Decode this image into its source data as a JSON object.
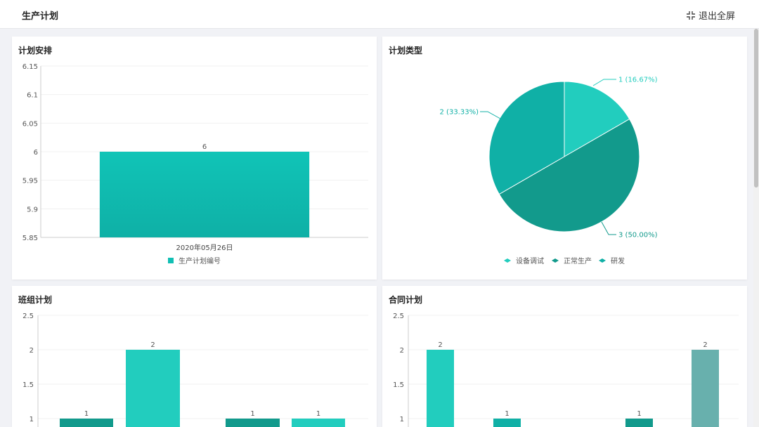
{
  "header": {
    "title": "生产计划",
    "exit_fullscreen_label": "退出全屏"
  },
  "cards": {
    "plan_schedule": {
      "title": "计划安排",
      "chart_data": {
        "type": "bar",
        "categories": [
          "2020年05月26日"
        ],
        "series": [
          {
            "name": "生产计划编号",
            "values": [
              6
            ]
          }
        ],
        "data_labels": [
          "6"
        ],
        "ylim": [
          5.85,
          6.15
        ],
        "yticks": [
          "6.15",
          "6.1",
          "6.05",
          "6",
          "5.95",
          "5.9",
          "5.85"
        ],
        "legend": "bottom",
        "grid": true
      }
    },
    "plan_type": {
      "title": "计划类型",
      "chart_data": {
        "type": "pie",
        "slices": [
          {
            "name": "设备调试",
            "value": 1,
            "label": "1 (16.67%)"
          },
          {
            "name": "正常生产",
            "value": 3,
            "label": "3 (50.00%)"
          },
          {
            "name": "研发",
            "value": 2,
            "label": "2 (33.33%)"
          }
        ],
        "legend": "bottom"
      }
    },
    "team_plan": {
      "title": "班组计划",
      "chart_data": {
        "type": "bar",
        "values": [
          1,
          2,
          1,
          1
        ],
        "data_labels": [
          "1",
          "2",
          "1",
          "1"
        ],
        "ylim": [
          0,
          2.5
        ],
        "yticks": [
          "2.5",
          "2",
          "1.5",
          "1"
        ],
        "grid": true
      }
    },
    "contract_plan": {
      "title": "合同计划",
      "chart_data": {
        "type": "bar",
        "values": [
          2,
          1,
          1,
          2
        ],
        "data_labels": [
          "2",
          "1",
          "1",
          "2"
        ],
        "ylim": [
          0,
          2.5
        ],
        "yticks": [
          "2.5",
          "2",
          "1.5",
          "1"
        ],
        "grid": true
      }
    }
  },
  "colors": {
    "teal": "#11bfb4",
    "teal_dark": "#129a8c",
    "teal_light": "#22cdbe",
    "teal_mid": "#10b0a6",
    "gray_teal": "#68b0ad"
  }
}
